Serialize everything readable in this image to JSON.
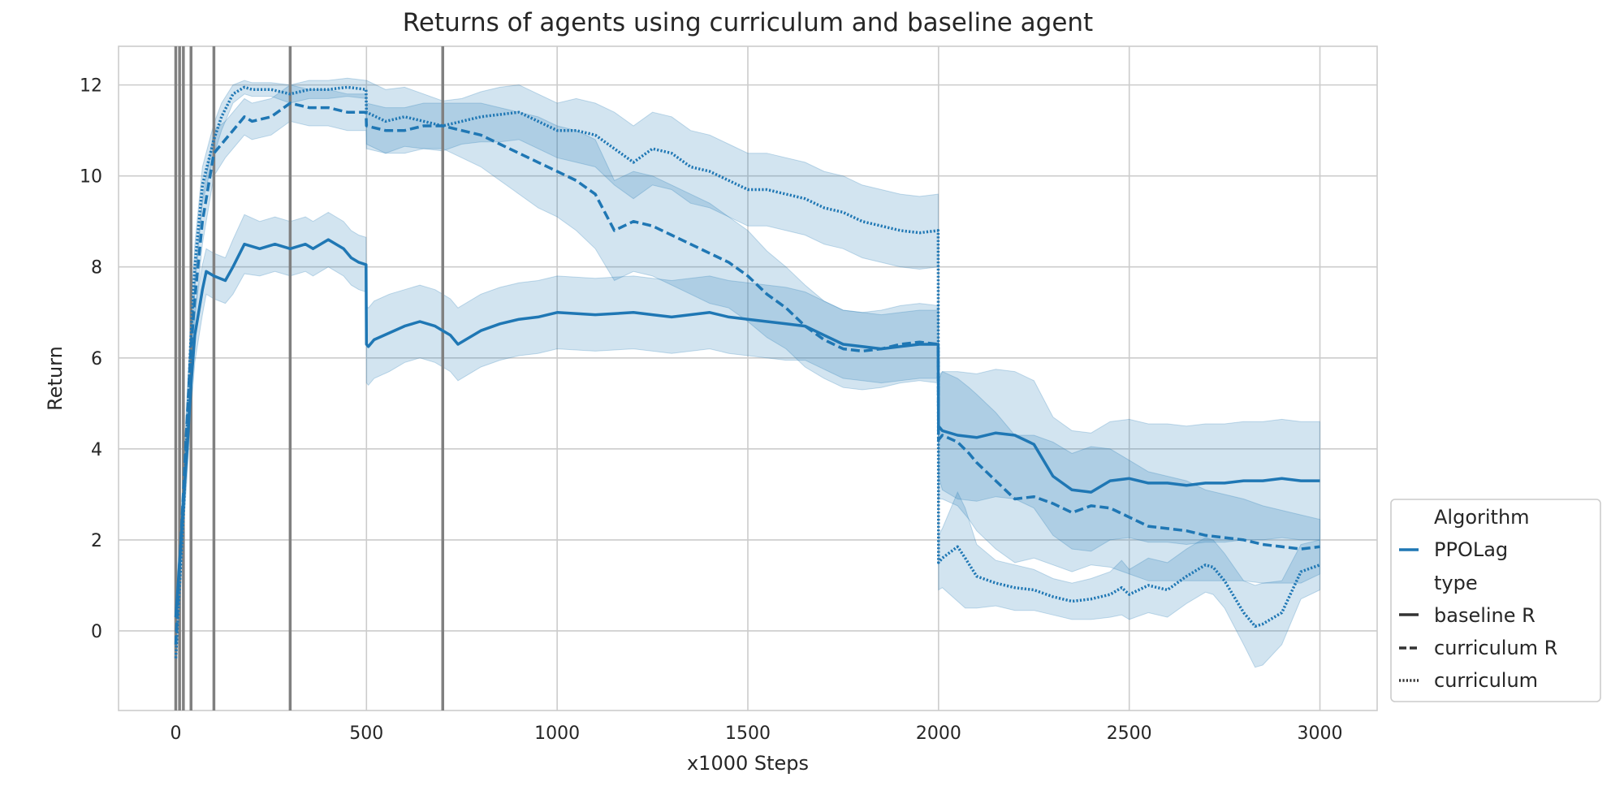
{
  "chart_data": {
    "type": "line",
    "title": "Returns of agents using curriculum and baseline agent",
    "xlabel": "x1000 Steps",
    "ylabel": "Return",
    "xlim": [
      -150,
      3150
    ],
    "ylim": [
      -1.75,
      12.85
    ],
    "xticks": [
      0,
      500,
      1000,
      1500,
      2000,
      2500,
      3000
    ],
    "yticks": [
      0,
      2,
      4,
      6,
      8,
      10,
      12
    ],
    "grid": true,
    "legend_position": "lower-right-outside",
    "color": "#1f77b4",
    "band_opacity": 0.2,
    "vlines": [
      0,
      10,
      20,
      40,
      100,
      300,
      700
    ],
    "vline_color": "#808080",
    "legend": {
      "algorithm_title": "Algorithm",
      "algorithm_entry": "PPOLag",
      "type_title": "type",
      "entries": [
        {
          "label": "baseline R",
          "dash": "solid"
        },
        {
          "label": "curriculum R",
          "dash": "dashed"
        },
        {
          "label": "curriculum",
          "dash": "dotted"
        }
      ]
    },
    "series": [
      {
        "name": "baseline R",
        "dash": "solid",
        "x": [
          0,
          10,
          20,
          30,
          40,
          50,
          70,
          80,
          100,
          130,
          150,
          180,
          220,
          260,
          300,
          340,
          360,
          400,
          440,
          460,
          480,
          499,
          500,
          505,
          520,
          560,
          600,
          640,
          680,
          700,
          720,
          740,
          760,
          800,
          850,
          900,
          950,
          1000,
          1100,
          1200,
          1250,
          1300,
          1400,
          1450,
          1500,
          1600,
          1650,
          1700,
          1750,
          1800,
          1850,
          1900,
          1950,
          1999,
          2000,
          2010,
          2050,
          2100,
          2150,
          2200,
          2250,
          2300,
          2350,
          2400,
          2450,
          2500,
          2550,
          2600,
          2650,
          2700,
          2750,
          2800,
          2850,
          2900,
          2950,
          3000
        ],
        "y": [
          0.3,
          1.5,
          2.8,
          4.0,
          5.4,
          6.5,
          7.5,
          7.9,
          7.8,
          7.7,
          8.0,
          8.5,
          8.4,
          8.5,
          8.4,
          8.5,
          8.4,
          8.6,
          8.4,
          8.2,
          8.1,
          8.05,
          6.3,
          6.25,
          6.4,
          6.55,
          6.7,
          6.8,
          6.7,
          6.6,
          6.5,
          6.3,
          6.4,
          6.6,
          6.75,
          6.85,
          6.9,
          7.0,
          6.95,
          7.0,
          6.95,
          6.9,
          7.0,
          6.9,
          6.85,
          6.75,
          6.7,
          6.5,
          6.3,
          6.25,
          6.2,
          6.25,
          6.3,
          6.3,
          4.5,
          4.4,
          4.3,
          4.25,
          4.35,
          4.3,
          4.1,
          3.4,
          3.1,
          3.05,
          3.3,
          3.35,
          3.25,
          3.25,
          3.2,
          3.25,
          3.25,
          3.3,
          3.3,
          3.35,
          3.3,
          3.3
        ],
        "band": [
          0.5,
          0.5,
          0.6,
          0.6,
          0.6,
          0.6,
          0.55,
          0.5,
          0.5,
          0.5,
          0.6,
          0.65,
          0.6,
          0.6,
          0.6,
          0.6,
          0.6,
          0.6,
          0.6,
          0.6,
          0.6,
          0.6,
          0.85,
          0.85,
          0.85,
          0.85,
          0.8,
          0.8,
          0.8,
          0.8,
          0.8,
          0.8,
          0.8,
          0.8,
          0.8,
          0.8,
          0.8,
          0.8,
          0.8,
          0.8,
          0.8,
          0.8,
          0.8,
          0.8,
          0.8,
          0.8,
          0.75,
          0.75,
          0.75,
          0.75,
          0.75,
          0.75,
          0.75,
          0.75,
          1.1,
          1.3,
          1.4,
          1.4,
          1.4,
          1.4,
          1.4,
          1.3,
          1.3,
          1.3,
          1.3,
          1.3,
          1.3,
          1.3,
          1.3,
          1.3,
          1.3,
          1.3,
          1.3,
          1.3,
          1.3,
          1.3
        ]
      },
      {
        "name": "curriculum R",
        "dash": "dashed",
        "x": [
          0,
          10,
          20,
          30,
          40,
          50,
          70,
          100,
          130,
          150,
          180,
          200,
          250,
          300,
          350,
          400,
          450,
          499,
          500,
          550,
          600,
          650,
          700,
          750,
          800,
          850,
          900,
          950,
          1000,
          1050,
          1100,
          1150,
          1200,
          1250,
          1300,
          1350,
          1400,
          1450,
          1500,
          1550,
          1600,
          1650,
          1700,
          1750,
          1800,
          1850,
          1900,
          1950,
          1999,
          2000,
          2010,
          2050,
          2080,
          2100,
          2150,
          2200,
          2250,
          2300,
          2350,
          2400,
          2450,
          2500,
          2550,
          2600,
          2650,
          2700,
          2750,
          2800,
          2850,
          2900,
          2950,
          3000
        ],
        "y": [
          -0.3,
          1.5,
          3.0,
          4.7,
          6.2,
          7.3,
          9.0,
          10.5,
          10.8,
          11.0,
          11.3,
          11.2,
          11.3,
          11.6,
          11.5,
          11.5,
          11.4,
          11.4,
          11.1,
          11.0,
          11.0,
          11.1,
          11.1,
          11.0,
          10.9,
          10.7,
          10.5,
          10.3,
          10.1,
          9.9,
          9.6,
          8.8,
          9.0,
          8.9,
          8.7,
          8.5,
          8.3,
          8.1,
          7.8,
          7.4,
          7.1,
          6.7,
          6.4,
          6.2,
          6.15,
          6.2,
          6.3,
          6.35,
          6.3,
          4.2,
          4.3,
          4.15,
          3.9,
          3.7,
          3.3,
          2.9,
          2.95,
          2.8,
          2.6,
          2.75,
          2.7,
          2.5,
          2.3,
          2.25,
          2.2,
          2.1,
          2.05,
          2.0,
          1.9,
          1.85,
          1.8,
          1.85
        ],
        "band": [
          0.5,
          0.5,
          0.5,
          0.5,
          0.5,
          0.5,
          0.5,
          0.5,
          0.4,
          0.4,
          0.4,
          0.4,
          0.4,
          0.4,
          0.4,
          0.4,
          0.4,
          0.4,
          0.5,
          0.5,
          0.5,
          0.5,
          0.5,
          0.6,
          0.7,
          0.8,
          0.9,
          1.0,
          1.0,
          1.1,
          1.2,
          1.1,
          1.1,
          1.1,
          1.1,
          1.1,
          1.1,
          1.0,
          1.0,
          0.95,
          0.9,
          0.9,
          0.85,
          0.85,
          0.85,
          0.85,
          0.85,
          0.85,
          0.85,
          1.3,
          1.4,
          1.4,
          1.45,
          1.5,
          1.5,
          1.4,
          1.35,
          1.35,
          1.3,
          1.3,
          1.3,
          1.25,
          1.2,
          1.15,
          1.1,
          1.0,
          0.95,
          0.9,
          0.85,
          0.8,
          0.75,
          0.6
        ]
      },
      {
        "name": "curriculum",
        "dash": "dotted",
        "x": [
          0,
          10,
          20,
          30,
          40,
          50,
          70,
          100,
          120,
          150,
          180,
          200,
          250,
          300,
          350,
          400,
          450,
          499,
          500,
          550,
          600,
          650,
          700,
          750,
          800,
          850,
          900,
          950,
          1000,
          1050,
          1100,
          1150,
          1200,
          1250,
          1300,
          1350,
          1400,
          1450,
          1500,
          1550,
          1600,
          1650,
          1700,
          1750,
          1800,
          1850,
          1900,
          1950,
          1999,
          2000,
          2010,
          2050,
          2070,
          2100,
          2150,
          2200,
          2250,
          2300,
          2350,
          2400,
          2450,
          2480,
          2500,
          2550,
          2600,
          2650,
          2700,
          2720,
          2750,
          2800,
          2830,
          2850,
          2900,
          2950,
          3000
        ],
        "y": [
          -0.6,
          1.0,
          2.5,
          4.5,
          6.5,
          8.0,
          9.8,
          10.8,
          11.3,
          11.8,
          11.95,
          11.9,
          11.9,
          11.8,
          11.9,
          11.9,
          11.95,
          11.9,
          11.4,
          11.2,
          11.3,
          11.2,
          11.1,
          11.2,
          11.3,
          11.35,
          11.4,
          11.2,
          11.0,
          11.0,
          10.9,
          10.6,
          10.3,
          10.6,
          10.5,
          10.2,
          10.1,
          9.9,
          9.7,
          9.7,
          9.6,
          9.5,
          9.3,
          9.2,
          9.0,
          8.9,
          8.8,
          8.75,
          8.8,
          1.5,
          1.6,
          1.85,
          1.6,
          1.2,
          1.05,
          0.95,
          0.9,
          0.75,
          0.65,
          0.7,
          0.8,
          0.95,
          0.8,
          1.0,
          0.9,
          1.2,
          1.45,
          1.4,
          1.1,
          0.4,
          0.1,
          0.15,
          0.4,
          1.3,
          1.45
        ],
        "band": [
          0.4,
          0.5,
          0.6,
          0.6,
          0.6,
          0.5,
          0.4,
          0.35,
          0.3,
          0.2,
          0.15,
          0.15,
          0.15,
          0.2,
          0.2,
          0.2,
          0.2,
          0.2,
          0.7,
          0.7,
          0.65,
          0.6,
          0.55,
          0.5,
          0.55,
          0.6,
          0.6,
          0.6,
          0.6,
          0.7,
          0.7,
          0.8,
          0.8,
          0.8,
          0.8,
          0.8,
          0.8,
          0.8,
          0.8,
          0.8,
          0.8,
          0.8,
          0.8,
          0.8,
          0.8,
          0.8,
          0.8,
          0.8,
          0.8,
          0.6,
          0.65,
          1.2,
          1.1,
          0.7,
          0.5,
          0.5,
          0.45,
          0.4,
          0.4,
          0.45,
          0.5,
          0.6,
          0.55,
          0.6,
          0.6,
          0.6,
          0.6,
          0.6,
          0.6,
          0.7,
          0.9,
          0.9,
          0.7,
          0.6,
          0.55
        ]
      }
    ]
  }
}
